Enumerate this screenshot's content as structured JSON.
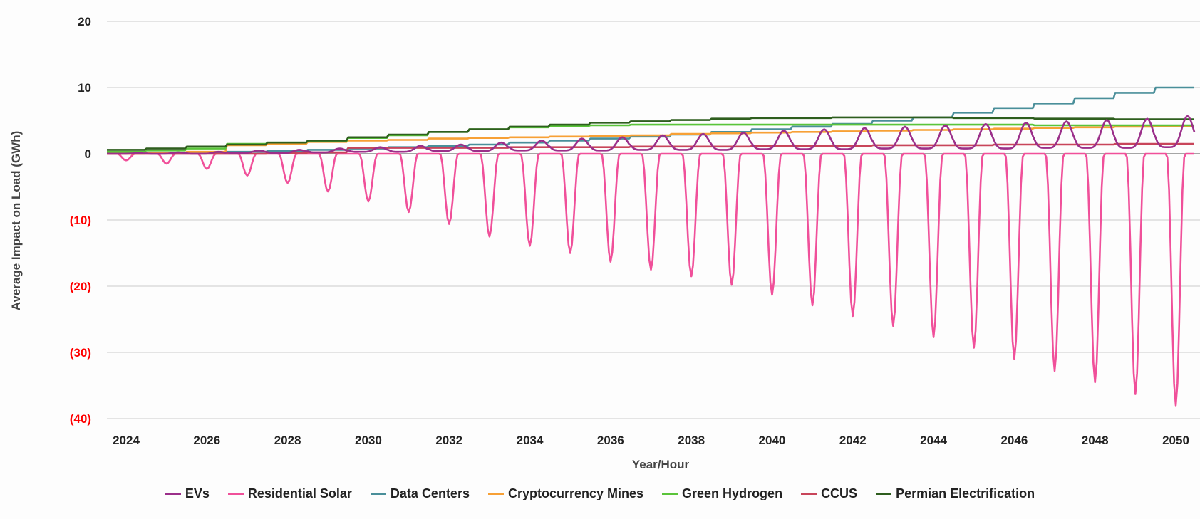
{
  "chart_data": {
    "type": "line",
    "title": "",
    "xlabel": "Year/Hour",
    "ylabel": "Average Impact on Load (GWh)",
    "ylim": [
      -40,
      20
    ],
    "yticks": [
      20,
      10,
      0,
      -10,
      -20,
      -30,
      -40
    ],
    "ytick_labels": [
      "20",
      "10",
      "0",
      "(10)",
      "(20)",
      "(30)",
      "(40)"
    ],
    "xtick_labels": [
      "2024",
      "2026",
      "2028",
      "2030",
      "2032",
      "2034",
      "2036",
      "2038",
      "2040",
      "2042",
      "2044",
      "2046",
      "2048",
      "2050"
    ],
    "years": [
      2024,
      2025,
      2026,
      2027,
      2028,
      2029,
      2030,
      2031,
      2032,
      2033,
      2034,
      2035,
      2036,
      2037,
      2038,
      2039,
      2040,
      2041,
      2042,
      2043,
      2044,
      2045,
      2046,
      2047,
      2048,
      2049,
      2050
    ],
    "grid": true,
    "legend_position": "bottom",
    "series": [
      {
        "name": "Residential Solar",
        "color": "#f0509a",
        "profile": "solar",
        "daily_min": [
          -1,
          -1.5,
          -2.3,
          -3.3,
          -4.4,
          -5.7,
          -7.2,
          -8.8,
          -10.6,
          -12.5,
          -13.9,
          -15,
          -16.3,
          -17.5,
          -18.5,
          -19.8,
          -21.3,
          -22.9,
          -24.5,
          -26,
          -27.7,
          -29.3,
          -31,
          -32.8,
          -34.5,
          -36.3,
          -38
        ]
      },
      {
        "name": "Data Centers",
        "color": "#4a8f9a",
        "profile": "flat",
        "values": [
          0.1,
          0.1,
          0.2,
          0.3,
          0.4,
          0.6,
          0.8,
          1.0,
          1.2,
          1.4,
          1.7,
          2.0,
          2.3,
          2.6,
          2.9,
          3.3,
          3.7,
          4.1,
          4.5,
          5.0,
          5.5,
          6.2,
          6.9,
          7.6,
          8.4,
          9.2,
          10.0
        ]
      },
      {
        "name": "Cryptocurrency Mines",
        "color": "#f7a035",
        "profile": "flat",
        "values": [
          0,
          0.1,
          0.3,
          1.3,
          1.5,
          1.8,
          2.0,
          2.1,
          2.3,
          2.4,
          2.5,
          2.6,
          2.7,
          2.8,
          3.0,
          3.1,
          3.2,
          3.3,
          3.4,
          3.5,
          3.6,
          3.7,
          3.8,
          3.9,
          4.0,
          4.1,
          4.2
        ]
      },
      {
        "name": "Green Hydrogen",
        "color": "#5ac43a",
        "profile": "flat",
        "values": [
          0.3,
          0.5,
          0.8,
          1.5,
          1.7,
          1.9,
          2.4,
          2.8,
          3.3,
          3.7,
          4.0,
          4.2,
          4.3,
          4.4,
          4.4,
          4.4,
          4.4,
          4.4,
          4.4,
          4.4,
          4.4,
          4.4,
          4.4,
          4.3,
          4.3,
          4.3,
          4.3
        ]
      },
      {
        "name": "Permian Electrification",
        "color": "#2e5e1e",
        "profile": "flat",
        "values": [
          0.6,
          0.8,
          1.1,
          1.4,
          1.7,
          2.0,
          2.5,
          2.9,
          3.3,
          3.7,
          4.1,
          4.4,
          4.7,
          4.9,
          5.1,
          5.3,
          5.4,
          5.4,
          5.5,
          5.5,
          5.5,
          5.4,
          5.4,
          5.3,
          5.3,
          5.2,
          5.2
        ]
      },
      {
        "name": "CCUS",
        "color": "#c8455a",
        "profile": "flat",
        "values": [
          0,
          0,
          0,
          0,
          0.1,
          0.2,
          0.9,
          0.9,
          0.9,
          0.9,
          1.0,
          1.0,
          1.0,
          1.1,
          1.1,
          1.1,
          1.2,
          1.2,
          1.2,
          1.3,
          1.3,
          1.3,
          1.4,
          1.4,
          1.4,
          1.5,
          1.5
        ]
      },
      {
        "name": "EVs",
        "color": "#9b2f8a",
        "profile": "evening_peak",
        "daily_min": [
          0,
          0,
          0,
          0.1,
          0.1,
          0.2,
          0.3,
          0.3,
          0.4,
          0.4,
          0.5,
          0.5,
          0.5,
          0.6,
          0.6,
          0.6,
          0.7,
          0.7,
          0.7,
          0.8,
          0.8,
          0.8,
          0.8,
          0.9,
          0.9,
          0.9,
          1.0
        ],
        "daily_peak": [
          0.1,
          0.2,
          0.3,
          0.5,
          0.6,
          0.8,
          1.0,
          1.2,
          1.4,
          1.7,
          2.0,
          2.3,
          2.5,
          2.8,
          3.0,
          3.2,
          3.5,
          3.7,
          3.9,
          4.1,
          4.3,
          4.5,
          4.7,
          4.9,
          5.1,
          5.3,
          5.7
        ]
      }
    ],
    "legend_order": [
      "EVs",
      "Residential Solar",
      "Data Centers",
      "Cryptocurrency Mines",
      "Green Hydrogen",
      "CCUS",
      "Permian Electrification"
    ]
  }
}
